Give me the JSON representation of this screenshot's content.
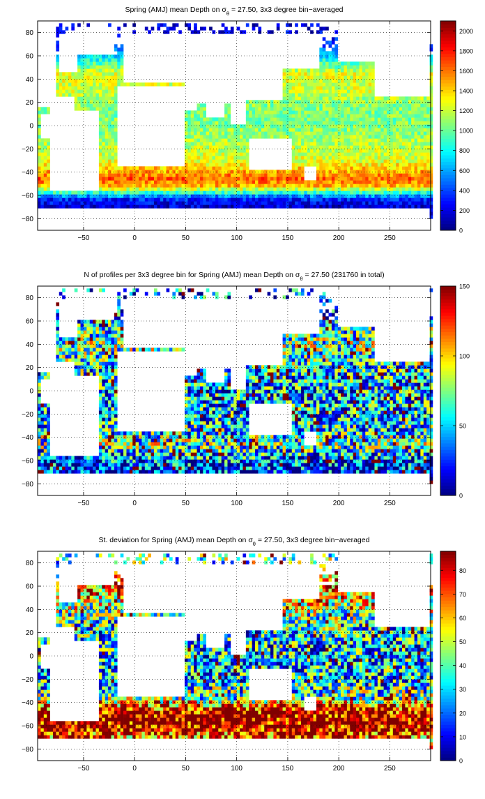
{
  "figure": {
    "panels": [
      {
        "title_pre": "Spring (AMJ) mean Depth on σ",
        "title_sub": "θ",
        "title_post": " = 27.50, 3x3 degree bin−averaged",
        "colorbar_ticks": [
          "0",
          "200",
          "400",
          "600",
          "800",
          "1000",
          "1200",
          "1400",
          "1600",
          "1800",
          "2000"
        ]
      },
      {
        "title_pre": "N of profiles per 3x3 degree bin for Spring (AMJ) mean Depth on σ",
        "title_sub": "θ",
        "title_post": " = 27.50 (231760 in total)",
        "colorbar_ticks": [
          "0",
          "50",
          "100",
          "150"
        ]
      },
      {
        "title_pre": "St. deviation for Spring (AMJ) mean Depth on σ",
        "title_sub": "θ",
        "title_post": " = 27.50, 3x3 degree bin−averaged",
        "colorbar_ticks": [
          "0",
          "10",
          "20",
          "30",
          "40",
          "50",
          "60",
          "70",
          "80"
        ]
      }
    ]
  },
  "chart_data": [
    {
      "type": "heatmap",
      "title": "Spring (AMJ) mean Depth on σθ = 27.50, 3x3 degree bin−averaged",
      "x_ticks": [
        -50,
        0,
        50,
        100,
        150,
        200,
        250
      ],
      "y_ticks": [
        -80,
        -60,
        -40,
        -20,
        0,
        20,
        40,
        60,
        80
      ],
      "xlim": [
        -95,
        290
      ],
      "ylim": [
        -90,
        90
      ],
      "clim": [
        0,
        2100
      ],
      "colormap": "jet",
      "grid": true,
      "colorbar": "right",
      "bin_size_deg": 3,
      "zonal_profile": [
        {
          "lat": -76,
          "value": 250
        },
        {
          "lat": -70,
          "value": 170
        },
        {
          "lat": -64,
          "value": 280
        },
        {
          "lat": -60,
          "value": 600
        },
        {
          "lat": -56,
          "value": 1050
        },
        {
          "lat": -52,
          "value": 1450
        },
        {
          "lat": -46,
          "value": 1650
        },
        {
          "lat": -40,
          "value": 1500
        },
        {
          "lat": -30,
          "value": 1250
        },
        {
          "lat": -15,
          "value": 1150
        },
        {
          "lat": 0,
          "value": 1050
        },
        {
          "lat": 15,
          "value": 1050
        },
        {
          "lat": 30,
          "value": 1200
        },
        {
          "lat": 45,
          "value": 1250
        },
        {
          "lat": 55,
          "value": 900
        },
        {
          "lat": 65,
          "value": 500
        },
        {
          "lat": 80,
          "value": 200
        }
      ]
    },
    {
      "type": "heatmap",
      "title": "N of profiles per 3x3 degree bin for Spring (AMJ) mean Depth on σθ = 27.50 (231760 in total)",
      "x_ticks": [
        -50,
        0,
        50,
        100,
        150,
        200,
        250
      ],
      "y_ticks": [
        -80,
        -60,
        -40,
        -20,
        0,
        20,
        40,
        60,
        80
      ],
      "xlim": [
        -95,
        290
      ],
      "ylim": [
        -90,
        90
      ],
      "clim": [
        0,
        150
      ],
      "colormap": "jet",
      "grid": true,
      "colorbar": "right",
      "total_profiles": 231760,
      "bin_size_deg": 3,
      "zonal_profile": [
        {
          "lat": -76,
          "value": 15
        },
        {
          "lat": -64,
          "value": 25
        },
        {
          "lat": -56,
          "value": 40
        },
        {
          "lat": -46,
          "value": 70
        },
        {
          "lat": -35,
          "value": 55
        },
        {
          "lat": -15,
          "value": 45
        },
        {
          "lat": 0,
          "value": 45
        },
        {
          "lat": 15,
          "value": 50
        },
        {
          "lat": 30,
          "value": 65
        },
        {
          "lat": 40,
          "value": 70
        },
        {
          "lat": 55,
          "value": 55
        },
        {
          "lat": 70,
          "value": 30
        }
      ]
    },
    {
      "type": "heatmap",
      "title": "St. deviation for Spring (AMJ) mean Depth on σθ = 27.50, 3x3 degree bin−averaged",
      "x_ticks": [
        -50,
        0,
        50,
        100,
        150,
        200,
        250
      ],
      "y_ticks": [
        -80,
        -60,
        -40,
        -20,
        0,
        20,
        40,
        60,
        80
      ],
      "xlim": [
        -95,
        290
      ],
      "ylim": [
        -90,
        90
      ],
      "clim": [
        0,
        88
      ],
      "colormap": "jet",
      "grid": true,
      "colorbar": "right",
      "bin_size_deg": 3,
      "zonal_profile": [
        {
          "lat": -76,
          "value": 60
        },
        {
          "lat": -64,
          "value": 80
        },
        {
          "lat": -56,
          "value": 88
        },
        {
          "lat": -50,
          "value": 85
        },
        {
          "lat": -44,
          "value": 75
        },
        {
          "lat": -36,
          "value": 40
        },
        {
          "lat": -20,
          "value": 28
        },
        {
          "lat": 0,
          "value": 27
        },
        {
          "lat": 20,
          "value": 30
        },
        {
          "lat": 35,
          "value": 40
        },
        {
          "lat": 50,
          "value": 55
        },
        {
          "lat": 60,
          "value": 70
        },
        {
          "lat": 75,
          "value": 40
        }
      ]
    }
  ]
}
